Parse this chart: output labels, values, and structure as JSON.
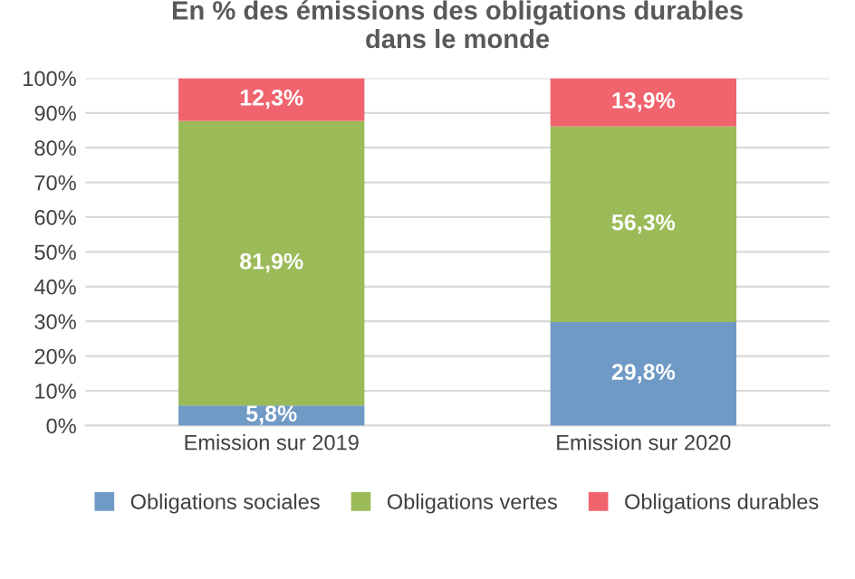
{
  "chart_data": {
    "type": "bar",
    "stacked": true,
    "title": "En % des émissions des obligations durables\ndans le monde",
    "categories": [
      "Emission sur 2019",
      "Emission sur 2020"
    ],
    "series": [
      {
        "name": "Obligations sociales",
        "color": "#6f9ac6",
        "values": [
          5.8,
          29.8
        ],
        "value_labels": [
          "5,8%",
          "29,8%"
        ]
      },
      {
        "name": "Obligations vertes",
        "color": "#9bbb59",
        "values": [
          81.9,
          56.3
        ],
        "value_labels": [
          "81,9%",
          "56,3%"
        ]
      },
      {
        "name": "Obligations durables",
        "color": "#f0646e",
        "values": [
          12.3,
          13.9
        ],
        "value_labels": [
          "12,3%",
          "13,9%"
        ]
      }
    ],
    "ylim": [
      0,
      100
    ],
    "yticks": [
      {
        "value": 0,
        "label": "0%"
      },
      {
        "value": 10,
        "label": "10%"
      },
      {
        "value": 20,
        "label": "20%"
      },
      {
        "value": 30,
        "label": "30%"
      },
      {
        "value": 40,
        "label": "40%"
      },
      {
        "value": 50,
        "label": "50%"
      },
      {
        "value": 60,
        "label": "60%"
      },
      {
        "value": 70,
        "label": "70%"
      },
      {
        "value": 80,
        "label": "80%"
      },
      {
        "value": 90,
        "label": "90%"
      },
      {
        "value": 100,
        "label": "100%"
      }
    ],
    "grid": "y",
    "legend": "bottom"
  }
}
